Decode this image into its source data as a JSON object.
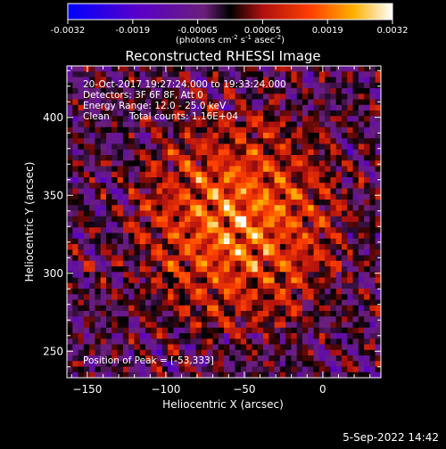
{
  "chart_data": {
    "type": "heatmap",
    "title": "Reconstructed RHESSI Image",
    "xlabel": "Heliocentric X (arcsec)",
    "ylabel": "Heliocentric Y (arcsec)",
    "xlim": [
      -163,
      37
    ],
    "ylim": [
      233,
      433
    ],
    "x_ticks": [
      -150,
      -100,
      -50,
      0
    ],
    "y_ticks": [
      250,
      300,
      350,
      400
    ],
    "colorbar": {
      "range": [
        -0.0032,
        0.0032
      ],
      "ticks": [
        "-0.0032",
        "-0.0019",
        "-0.00065",
        "0.00065",
        "0.0019",
        "0.0032"
      ],
      "unit_prefix": "(photons cm",
      "unit_exp1": "-2",
      "unit_mid1": " s",
      "unit_exp2": "-1",
      "unit_mid2": " asec",
      "unit_exp3": "-2",
      "unit_suffix": ")"
    },
    "annotations": {
      "time_range": "20-Oct-2017 19:27:24.000 to 19:33:24.000",
      "detectors": "Detectors: 3F 6F 8F, Att 0",
      "energy": "Energy Range: 12.0 - 25.0 keV",
      "algorithm": "Clean",
      "counts": "Total counts: 1.16E+04",
      "peak": "Position of Peak = [-53,333]"
    },
    "peak": {
      "x": -53,
      "y": 333
    },
    "grid": false,
    "legend": "colorbar-top"
  },
  "footer": {
    "timestamp": "5-Sep-2022 14:42"
  },
  "colors": {
    "background": "#000000",
    "axes": "#ffffff"
  }
}
